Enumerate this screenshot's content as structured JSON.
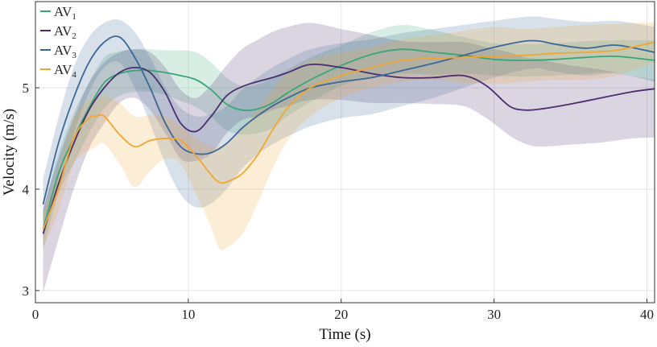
{
  "chart_data": {
    "type": "line",
    "title": "",
    "xlabel": "Time (s)",
    "ylabel": "Velocity (m/s)",
    "xlim": [
      0,
      40.5
    ],
    "ylim": [
      2.88,
      5.85
    ],
    "xticks": [
      0,
      10,
      20,
      30,
      40
    ],
    "yticks": [
      3,
      4,
      5
    ],
    "xtick_labels": [
      "0",
      "10",
      "20",
      "30",
      "40"
    ],
    "ytick_labels": [
      "3",
      "4",
      "5"
    ],
    "grid": true,
    "legend_position": "top-left",
    "series": [
      {
        "name": "AV1",
        "label_base": "AV",
        "label_sub": "1",
        "color": "#3aa678",
        "x": [
          0.5,
          1.5,
          2.5,
          3.5,
          4.5,
          5.5,
          6.5,
          7.5,
          8.5,
          9.5,
          10.5,
          11.5,
          12.5,
          13.5,
          14.5,
          15.5,
          16.5,
          18,
          20,
          22,
          24,
          26,
          28,
          30,
          32,
          34,
          36,
          38,
          40.5
        ],
        "y": [
          3.6,
          4.15,
          4.5,
          4.8,
          5.05,
          5.14,
          5.17,
          5.17,
          5.15,
          5.12,
          5.08,
          4.98,
          4.84,
          4.78,
          4.79,
          4.85,
          4.95,
          5.08,
          5.22,
          5.33,
          5.38,
          5.35,
          5.32,
          5.28,
          5.27,
          5.28,
          5.3,
          5.31,
          5.27
        ],
        "upper": [
          3.8,
          4.35,
          4.75,
          5.05,
          5.3,
          5.36,
          5.38,
          5.38,
          5.37,
          5.37,
          5.35,
          5.25,
          5.1,
          5.02,
          5.03,
          5.1,
          5.18,
          5.3,
          5.42,
          5.55,
          5.62,
          5.57,
          5.5,
          5.44,
          5.43,
          5.44,
          5.46,
          5.47,
          5.47
        ],
        "lower": [
          3.4,
          3.95,
          4.25,
          4.55,
          4.8,
          4.92,
          4.96,
          4.96,
          4.93,
          4.87,
          4.81,
          4.71,
          4.58,
          4.54,
          4.55,
          4.6,
          4.72,
          4.86,
          5.02,
          5.11,
          5.14,
          5.13,
          5.14,
          5.12,
          5.11,
          5.12,
          5.14,
          5.15,
          5.07
        ]
      },
      {
        "name": "AV2",
        "label_base": "AV",
        "label_sub": "2",
        "color": "#4a2f6e",
        "x": [
          0.5,
          1.5,
          2.5,
          3.5,
          4.5,
          5.5,
          6.5,
          7.5,
          8.5,
          9.5,
          10.5,
          11.5,
          12.5,
          13.5,
          14.5,
          15.5,
          16.5,
          18,
          20,
          22,
          24,
          26,
          28,
          29.5,
          31,
          32,
          33,
          35,
          37,
          39,
          40.5
        ],
        "y": [
          3.56,
          4.05,
          4.45,
          4.78,
          5.0,
          5.15,
          5.2,
          5.15,
          4.95,
          4.65,
          4.57,
          4.72,
          4.92,
          5.01,
          5.06,
          5.1,
          5.15,
          5.23,
          5.2,
          5.14,
          5.1,
          5.1,
          5.12,
          5.02,
          4.82,
          4.78,
          4.79,
          4.84,
          4.9,
          4.96,
          4.99
        ],
        "upper": [
          3.8,
          4.3,
          4.7,
          5.05,
          5.25,
          5.35,
          5.38,
          5.35,
          5.2,
          4.98,
          4.9,
          5.03,
          5.22,
          5.38,
          5.47,
          5.55,
          5.6,
          5.64,
          5.58,
          5.52,
          5.46,
          5.45,
          5.45,
          5.4,
          5.35,
          5.3,
          5.28,
          5.22,
          5.18,
          5.12,
          5.08
        ],
        "lower": [
          2.98,
          3.5,
          4.0,
          4.4,
          4.65,
          4.85,
          4.9,
          4.78,
          4.55,
          4.3,
          4.28,
          4.35,
          4.55,
          4.68,
          4.72,
          4.78,
          4.82,
          4.88,
          4.88,
          4.85,
          4.85,
          4.84,
          4.82,
          4.7,
          4.53,
          4.45,
          4.42,
          4.44,
          4.46,
          4.5,
          4.51
        ]
      },
      {
        "name": "AV3",
        "label_base": "AV",
        "label_sub": "3",
        "color": "#3c6896",
        "x": [
          0.5,
          1.5,
          2.5,
          3.5,
          4.5,
          5.5,
          6.5,
          7.5,
          8.5,
          9.5,
          10.5,
          11.5,
          12.5,
          13.5,
          14.5,
          15.5,
          16.5,
          18,
          20,
          22,
          24,
          26,
          28,
          30,
          32,
          33,
          34,
          36,
          38,
          40.5
        ],
        "y": [
          3.85,
          4.45,
          4.9,
          5.25,
          5.45,
          5.5,
          5.3,
          5.0,
          4.65,
          4.42,
          4.35,
          4.36,
          4.45,
          4.6,
          4.72,
          4.82,
          4.9,
          5.0,
          5.06,
          5.1,
          5.17,
          5.24,
          5.32,
          5.4,
          5.46,
          5.46,
          5.43,
          5.39,
          5.42,
          5.35
        ],
        "upper": [
          4.1,
          4.7,
          5.2,
          5.5,
          5.64,
          5.67,
          5.55,
          5.3,
          5.0,
          4.8,
          4.72,
          4.74,
          4.82,
          4.98,
          5.1,
          5.2,
          5.28,
          5.38,
          5.44,
          5.48,
          5.54,
          5.58,
          5.62,
          5.66,
          5.7,
          5.7,
          5.68,
          5.65,
          5.66,
          5.6
        ],
        "lower": [
          3.5,
          4.1,
          4.55,
          4.95,
          5.2,
          5.25,
          5.0,
          4.65,
          4.25,
          3.95,
          3.82,
          3.86,
          4.0,
          4.2,
          4.34,
          4.44,
          4.52,
          4.62,
          4.7,
          4.74,
          4.82,
          4.9,
          5.0,
          5.1,
          5.18,
          5.19,
          5.16,
          5.12,
          5.14,
          5.06
        ]
      },
      {
        "name": "AV4",
        "label_base": "AV",
        "label_sub": "4",
        "color": "#f0a731",
        "x": [
          0.5,
          1.5,
          2.5,
          3.5,
          4,
          4.5,
          5.5,
          6.5,
          7.5,
          8.5,
          9.5,
          10.5,
          11.5,
          12,
          12.5,
          13.5,
          14.5,
          15.5,
          16.5,
          18,
          20,
          22,
          24,
          26,
          28,
          30,
          32,
          34,
          36,
          38,
          40.5
        ],
        "y": [
          3.6,
          4.0,
          4.5,
          4.7,
          4.72,
          4.72,
          4.54,
          4.42,
          4.48,
          4.5,
          4.48,
          4.33,
          4.14,
          4.07,
          4.07,
          4.15,
          4.33,
          4.58,
          4.8,
          5.0,
          5.12,
          5.2,
          5.27,
          5.29,
          5.3,
          5.31,
          5.32,
          5.34,
          5.35,
          5.37,
          5.45
        ],
        "upper": [
          3.75,
          4.2,
          4.7,
          4.88,
          4.9,
          4.92,
          4.85,
          4.72,
          4.73,
          4.72,
          4.62,
          4.5,
          4.42,
          4.42,
          4.46,
          4.6,
          4.78,
          4.98,
          5.15,
          5.27,
          5.35,
          5.4,
          5.48,
          5.52,
          5.56,
          5.6,
          5.58,
          5.6,
          5.62,
          5.63,
          5.65
        ],
        "lower": [
          3.42,
          3.78,
          4.25,
          4.38,
          4.42,
          4.45,
          4.25,
          4.02,
          4.18,
          4.3,
          4.25,
          3.95,
          3.62,
          3.42,
          3.42,
          3.55,
          3.85,
          4.2,
          4.48,
          4.72,
          4.9,
          5.0,
          5.06,
          5.08,
          5.05,
          5.04,
          5.06,
          5.08,
          5.08,
          5.12,
          5.25
        ]
      }
    ]
  }
}
